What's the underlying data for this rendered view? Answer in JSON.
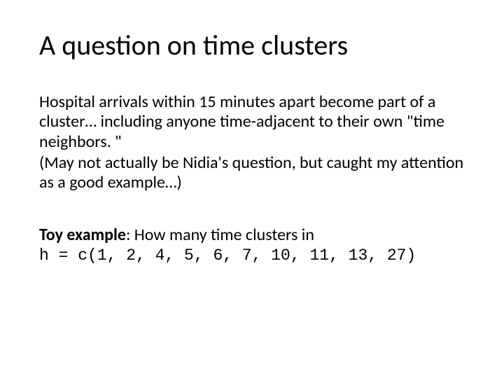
{
  "slide": {
    "title": "A question on time clusters",
    "paragraph1": "Hospital arrivals within 15 minutes apart become part of a cluster… including anyone time-adjacent to their own \"time neighbors. \"",
    "paragraph2": "(May not actually be Nidia's question, but caught my attention as a good example…)",
    "toy_label": "Toy example",
    "toy_rest": ": How many time clusters in",
    "code_line": "h = c(1, 2, 4, 5, 6, 7, 10, 11, 13, 27)",
    "background_color": "#ffffff",
    "text_color": "#000000",
    "title_fontsize": 40,
    "body_fontsize": 24,
    "code_fontsize": 23
  }
}
